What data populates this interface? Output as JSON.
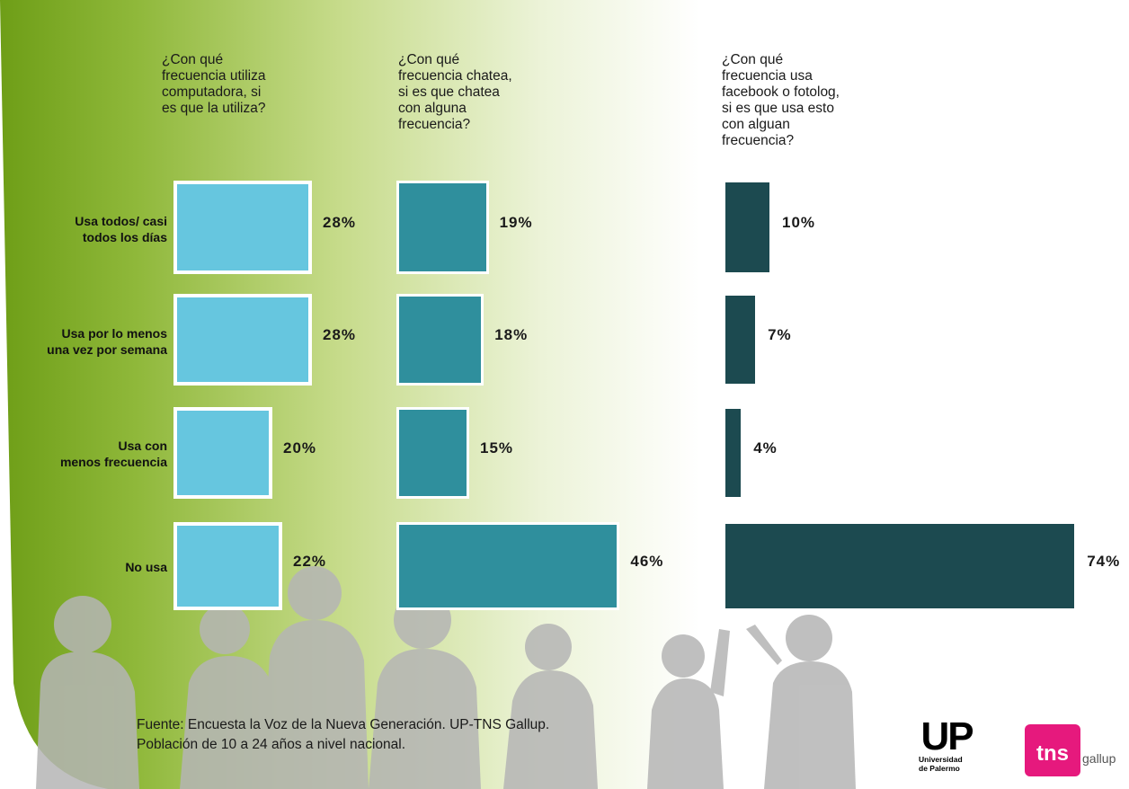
{
  "questions": [
    "¿Con qué\nfrecuencia utiliza\ncomputadora, si\nes que la utiliza?",
    "¿Con qué\nfrecuencia chatea,\nsi es que chatea\ncon alguna\nfrecuencia?",
    "¿Con qué\nfrecuencia usa\nfacebook o fotolog,\nsi es que usa esto\ncon alguan\nfrecuencia?"
  ],
  "chart_data": {
    "type": "bar",
    "orientation": "horizontal",
    "categories": [
      "Usa todos/ casi\ntodos los días",
      "Usa por lo menos\nuna vez por semana",
      "Usa con\nmenos frecuencia",
      "No usa"
    ],
    "series": [
      {
        "values": [
          28,
          28,
          20,
          22
        ],
        "labels": [
          "28%",
          "28%",
          "20%",
          "22%"
        ],
        "color": "#66c6df"
      },
      {
        "values": [
          19,
          18,
          15,
          46
        ],
        "labels": [
          "19%",
          "18%",
          "15%",
          "46%"
        ],
        "color": "#2f8f9d"
      },
      {
        "values": [
          10,
          7,
          4,
          74
        ],
        "labels": [
          "10%",
          "7%",
          "4%",
          "74%"
        ],
        "color": "#1c4a50"
      }
    ],
    "unit": "%",
    "grid": false,
    "legend": "none"
  },
  "footer": {
    "source_line1": "Fuente: Encuesta la Voz de la Nueva Generación. UP-TNS Gallup.",
    "source_line2": "Población de 10 a 24 años a nivel nacional."
  },
  "logos": {
    "up_letters": "UP",
    "up_subtitle": "Universidad\nde Palermo",
    "tns_text": "tns",
    "tns_gallup": "gallup"
  },
  "colors": {
    "background_green": "#7aa520",
    "silhouette": "#b9b9b9"
  }
}
